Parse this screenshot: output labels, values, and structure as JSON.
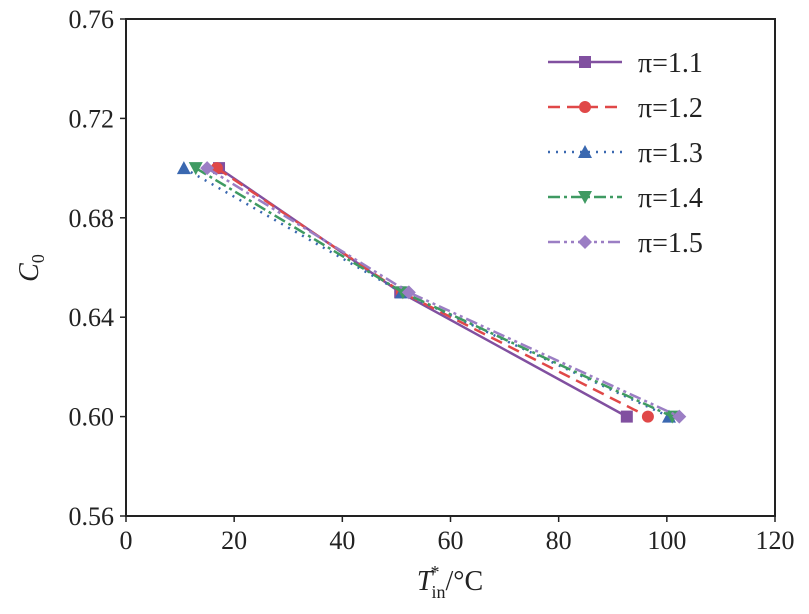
{
  "chart_data": {
    "type": "line",
    "title": "",
    "xlabel": "T",
    "xlabel_sub": "in",
    "xlabel_sup": "*",
    "xlabel_unit": "/°C",
    "ylabel": "C",
    "ylabel_sub": "0",
    "xlim": [
      0,
      120
    ],
    "ylim": [
      0.56,
      0.76
    ],
    "xticks": [
      "0",
      "20",
      "40",
      "60",
      "80",
      "100",
      "120"
    ],
    "yticks": [
      "0.56",
      "0.60",
      "0.64",
      "0.68",
      "0.72",
      "0.76"
    ],
    "grid": false,
    "legend_position": "top-right",
    "series": [
      {
        "name": "π=1.1",
        "color": "#8150a0",
        "dash": "",
        "marker": "square",
        "x": [
          17.2,
          50.7,
          92.6
        ],
        "y": [
          0.7,
          0.65,
          0.6
        ]
      },
      {
        "name": "π=1.2",
        "color": "#e04848",
        "dash": "12,7",
        "marker": "circle",
        "x": [
          16.8,
          51.0,
          96.5
        ],
        "y": [
          0.7,
          0.65,
          0.6
        ]
      },
      {
        "name": "π=1.3",
        "color": "#3a68b0",
        "dash": "2,6",
        "marker": "triangle-up",
        "x": [
          10.7,
          51.0,
          100.4
        ],
        "y": [
          0.7,
          0.65,
          0.6
        ]
      },
      {
        "name": "π=1.4",
        "color": "#3f9a62",
        "dash": "12,4,3,4",
        "marker": "triangle-down",
        "x": [
          12.9,
          51.2,
          101.0
        ],
        "y": [
          0.7,
          0.65,
          0.6
        ]
      },
      {
        "name": "π=1.5",
        "color": "#9b7ec4",
        "dash": "12,4,3,4,3,4",
        "marker": "diamond",
        "x": [
          15.0,
          52.3,
          102.3
        ],
        "y": [
          0.7,
          0.65,
          0.6
        ]
      }
    ]
  }
}
